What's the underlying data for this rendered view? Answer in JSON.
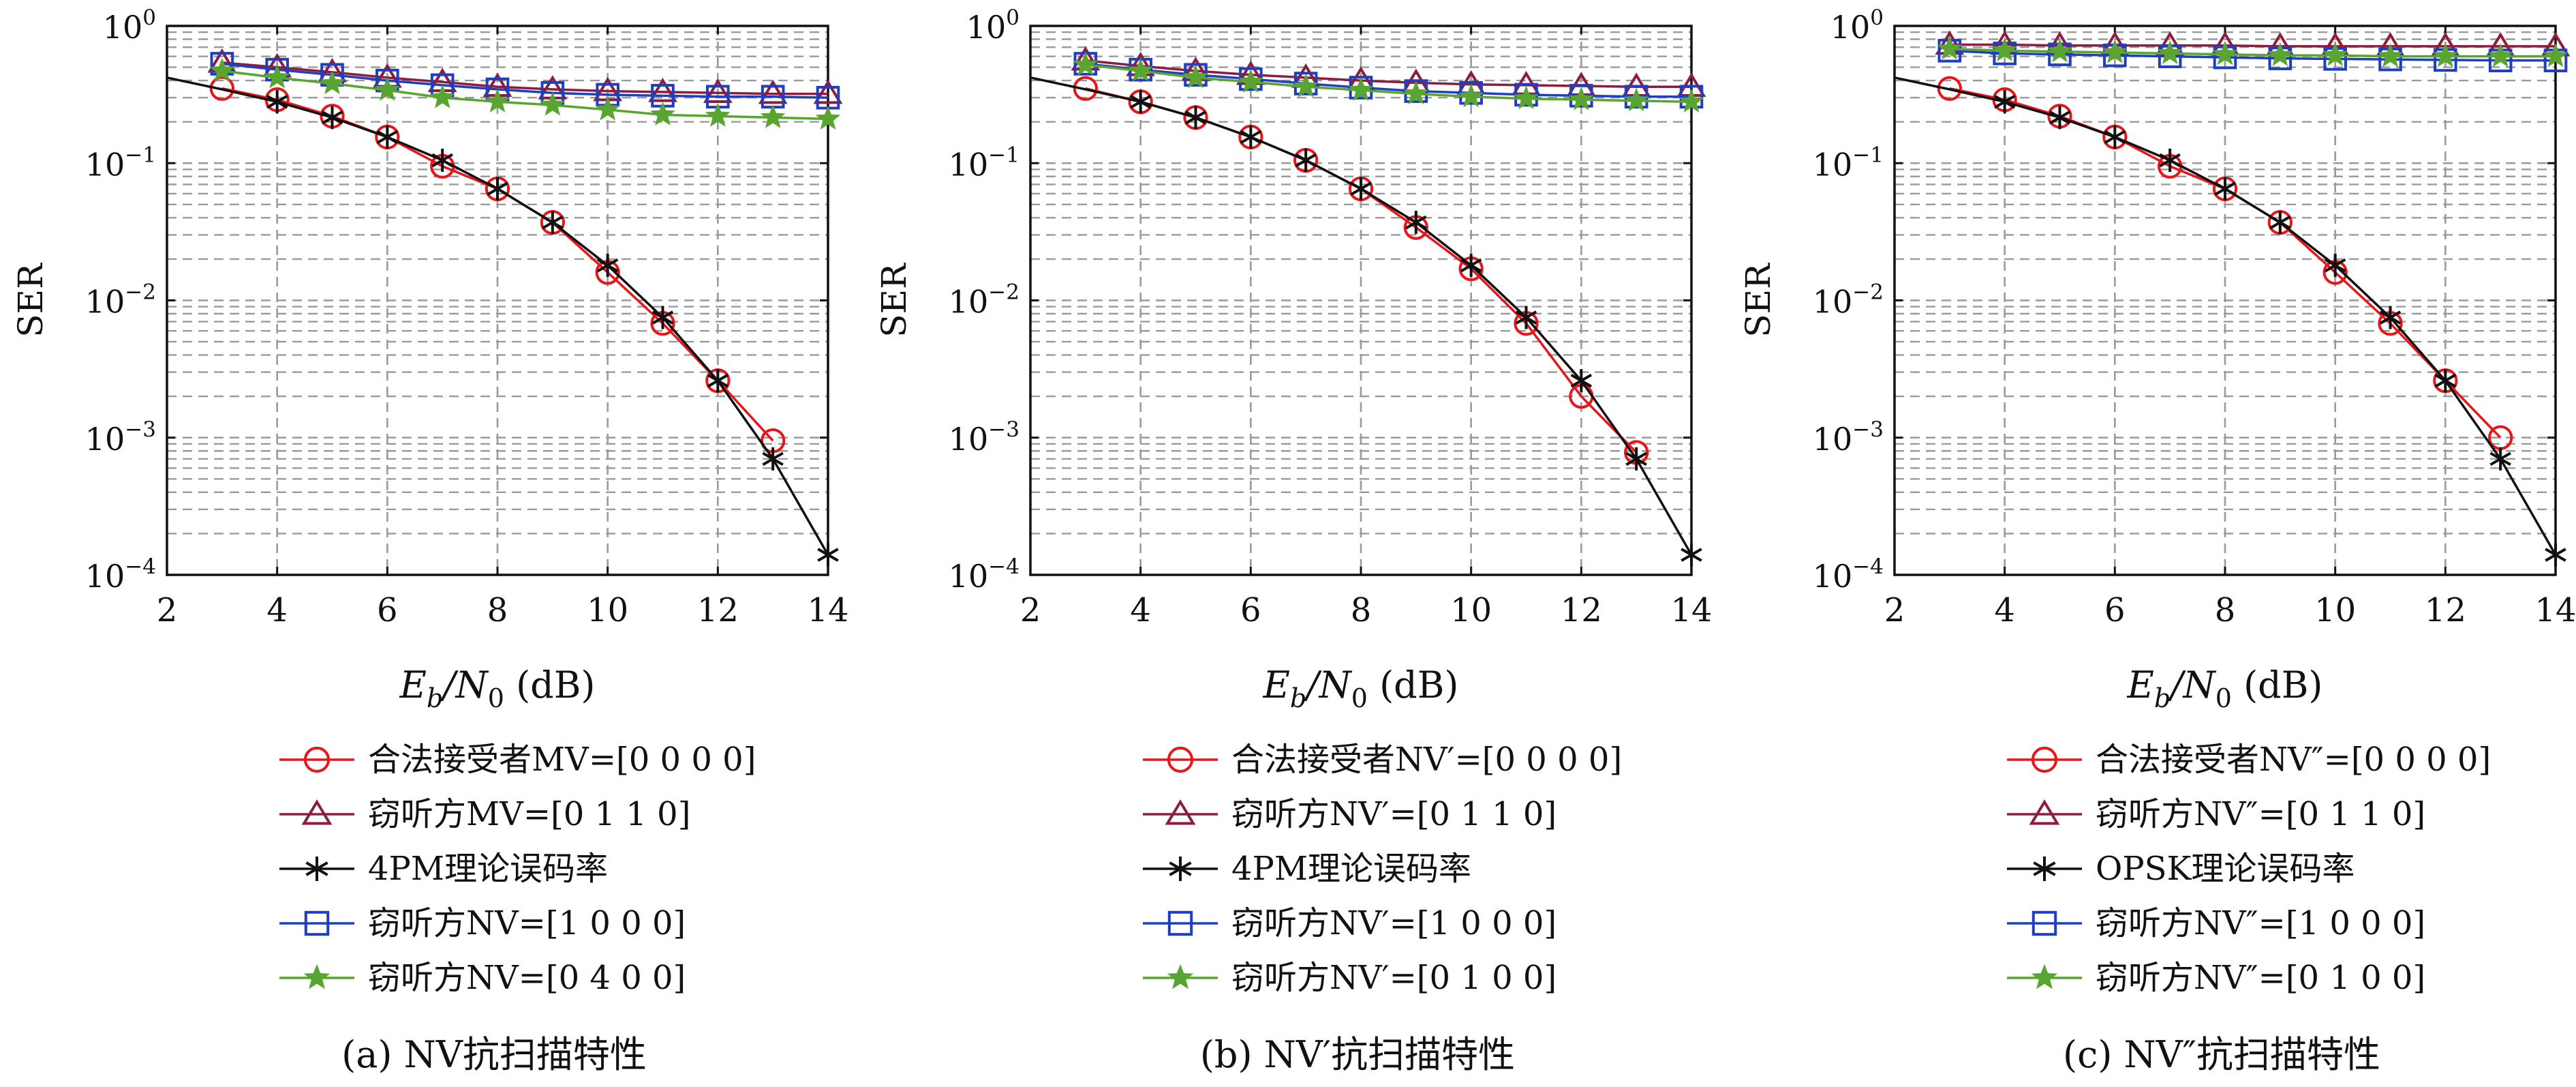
{
  "colors": {
    "legit": "#e8161b",
    "eve_a": "#8c1d3f",
    "theory": "#111111",
    "eve_b": "#1f3fbf",
    "eve_c": "#5aa531",
    "grid": "#9a9a9a"
  },
  "chart_data": [
    {
      "type": "line",
      "yscale": "log",
      "grid": true,
      "legend_placement": "below",
      "title": "(a) NV抗扫描特性",
      "xlabel": "E_b/N_0 (dB)",
      "ylabel": "SER",
      "xlim": [
        2,
        14
      ],
      "ylim": [
        0.0001,
        1
      ],
      "xticks": [
        2,
        4,
        6,
        8,
        10,
        12,
        14
      ],
      "yticks": [
        {
          "v": 1,
          "e": "0"
        },
        {
          "v": 0.1,
          "e": "-1"
        },
        {
          "v": 0.01,
          "e": "-2"
        },
        {
          "v": 0.001,
          "e": "-3"
        },
        {
          "v": 0.0001,
          "e": "-4"
        }
      ],
      "series": [
        {
          "name": "合法接受者MV=[0 0 0 0]",
          "marker": "circle",
          "color": "legit",
          "x": [
            3,
            4,
            5,
            6,
            7,
            8,
            9,
            10,
            11,
            12,
            13
          ],
          "y": [
            0.35,
            0.29,
            0.22,
            0.155,
            0.095,
            0.065,
            0.037,
            0.016,
            0.0068,
            0.0026,
            0.00095
          ]
        },
        {
          "name": "窃听方MV=[0 1 1 0]",
          "marker": "triangle",
          "color": "eve_a",
          "x": [
            3,
            4,
            5,
            6,
            7,
            8,
            9,
            10,
            11,
            12,
            13,
            14
          ],
          "y": [
            0.54,
            0.5,
            0.46,
            0.42,
            0.39,
            0.36,
            0.345,
            0.335,
            0.33,
            0.325,
            0.32,
            0.32
          ]
        },
        {
          "name": "4PM理论误码率",
          "marker": "asterisk",
          "color": "theory",
          "line_from": 2,
          "x": [
            2,
            3,
            4,
            5,
            6,
            7,
            8,
            9,
            10,
            11,
            12,
            13,
            14
          ],
          "y": [
            0.42,
            0.345,
            0.28,
            0.215,
            0.155,
            0.105,
            0.065,
            0.037,
            0.018,
            0.0075,
            0.0026,
            0.0007,
            0.00014
          ]
        },
        {
          "name": "窃听方NV=[1 0 0 0]",
          "marker": "square",
          "color": "eve_b",
          "x": [
            3,
            4,
            5,
            6,
            7,
            8,
            9,
            10,
            11,
            12,
            13,
            14
          ],
          "y": [
            0.53,
            0.48,
            0.44,
            0.4,
            0.37,
            0.345,
            0.325,
            0.315,
            0.31,
            0.305,
            0.305,
            0.3
          ]
        },
        {
          "name": "窃听方NV=[0 4 0 0]",
          "marker": "star",
          "color": "eve_c",
          "x": [
            3,
            4,
            5,
            6,
            7,
            8,
            9,
            10,
            11,
            12,
            13,
            14
          ],
          "y": [
            0.47,
            0.42,
            0.38,
            0.34,
            0.3,
            0.28,
            0.265,
            0.245,
            0.225,
            0.22,
            0.215,
            0.21
          ]
        }
      ]
    },
    {
      "type": "line",
      "yscale": "log",
      "grid": true,
      "legend_placement": "below",
      "title": "(b) NV′抗扫描特性",
      "xlabel": "E_b/N_0 (dB)",
      "ylabel": "SER",
      "xlim": [
        2,
        14
      ],
      "ylim": [
        0.0001,
        1
      ],
      "xticks": [
        2,
        4,
        6,
        8,
        10,
        12,
        14
      ],
      "yticks": [
        {
          "v": 1,
          "e": "0"
        },
        {
          "v": 0.1,
          "e": "-1"
        },
        {
          "v": 0.01,
          "e": "-2"
        },
        {
          "v": 0.001,
          "e": "-3"
        },
        {
          "v": 0.0001,
          "e": "-4"
        }
      ],
      "series": [
        {
          "name": "合法接受者NV′=[0 0 0 0]",
          "marker": "circle",
          "color": "legit",
          "x": [
            3,
            4,
            5,
            6,
            7,
            8,
            9,
            10,
            11,
            12,
            13
          ],
          "y": [
            0.35,
            0.28,
            0.215,
            0.155,
            0.105,
            0.065,
            0.034,
            0.017,
            0.0068,
            0.002,
            0.00078
          ]
        },
        {
          "name": "窃听方NV′=[0 1 1 0]",
          "marker": "triangle",
          "color": "eve_a",
          "x": [
            3,
            4,
            5,
            6,
            7,
            8,
            9,
            10,
            11,
            12,
            13,
            14
          ],
          "y": [
            0.56,
            0.51,
            0.47,
            0.44,
            0.42,
            0.4,
            0.385,
            0.375,
            0.37,
            0.365,
            0.36,
            0.36
          ]
        },
        {
          "name": "4PM理论误码率",
          "marker": "asterisk",
          "color": "theory",
          "line_from": 2,
          "x": [
            2,
            3,
            4,
            5,
            6,
            7,
            8,
            9,
            10,
            11,
            12,
            13,
            14
          ],
          "y": [
            0.42,
            0.345,
            0.28,
            0.215,
            0.155,
            0.105,
            0.065,
            0.037,
            0.018,
            0.0075,
            0.0026,
            0.0007,
            0.00014
          ]
        },
        {
          "name": "窃听方NV′=[1 0 0 0]",
          "marker": "square",
          "color": "eve_b",
          "x": [
            3,
            4,
            5,
            6,
            7,
            8,
            9,
            10,
            11,
            12,
            13,
            14
          ],
          "y": [
            0.53,
            0.48,
            0.44,
            0.41,
            0.38,
            0.355,
            0.335,
            0.325,
            0.315,
            0.31,
            0.305,
            0.305
          ]
        },
        {
          "name": "窃听方NV′=[0 1 0 0]",
          "marker": "star",
          "color": "eve_c",
          "x": [
            3,
            4,
            5,
            6,
            7,
            8,
            9,
            10,
            11,
            12,
            13,
            14
          ],
          "y": [
            0.52,
            0.47,
            0.42,
            0.39,
            0.36,
            0.34,
            0.32,
            0.305,
            0.295,
            0.29,
            0.285,
            0.28
          ]
        }
      ]
    },
    {
      "type": "line",
      "yscale": "log",
      "grid": true,
      "legend_placement": "below",
      "title": "(c) NV″抗扫描特性",
      "xlabel": "E_b/N_0 (dB)",
      "ylabel": "SER",
      "xlim": [
        2,
        14
      ],
      "ylim": [
        0.0001,
        1
      ],
      "xticks": [
        2,
        4,
        6,
        8,
        10,
        12,
        14
      ],
      "yticks": [
        {
          "v": 1,
          "e": "0"
        },
        {
          "v": 0.1,
          "e": "-1"
        },
        {
          "v": 0.01,
          "e": "-2"
        },
        {
          "v": 0.001,
          "e": "-3"
        },
        {
          "v": 0.0001,
          "e": "-4"
        }
      ],
      "series": [
        {
          "name": "合法接受者NV″=[0 0 0 0]",
          "marker": "circle",
          "color": "legit",
          "x": [
            3,
            4,
            5,
            6,
            7,
            8,
            9,
            10,
            11,
            12,
            13
          ],
          "y": [
            0.35,
            0.29,
            0.22,
            0.155,
            0.095,
            0.065,
            0.037,
            0.016,
            0.0068,
            0.0026,
            0.001
          ]
        },
        {
          "name": "窃听方NV″=[0 1 1 0]",
          "marker": "triangle",
          "color": "eve_a",
          "x": [
            3,
            4,
            5,
            6,
            7,
            8,
            9,
            10,
            11,
            12,
            13,
            14
          ],
          "y": [
            0.73,
            0.73,
            0.72,
            0.72,
            0.72,
            0.72,
            0.71,
            0.71,
            0.71,
            0.71,
            0.71,
            0.71
          ]
        },
        {
          "name": "OPSK理论误码率",
          "marker": "asterisk",
          "color": "theory",
          "line_from": 2,
          "x": [
            2,
            3,
            4,
            5,
            6,
            7,
            8,
            9,
            10,
            11,
            12,
            13,
            14
          ],
          "y": [
            0.42,
            0.345,
            0.28,
            0.215,
            0.155,
            0.105,
            0.065,
            0.037,
            0.018,
            0.0075,
            0.0026,
            0.0007,
            0.00014
          ]
        },
        {
          "name": "窃听方NV″=[1 0 0 0]",
          "marker": "square",
          "color": "eve_b",
          "x": [
            3,
            4,
            5,
            6,
            7,
            8,
            9,
            10,
            11,
            12,
            13,
            14
          ],
          "y": [
            0.66,
            0.63,
            0.62,
            0.61,
            0.6,
            0.59,
            0.58,
            0.575,
            0.57,
            0.565,
            0.56,
            0.56
          ]
        },
        {
          "name": "窃听方NV″=[0 1 0 0]",
          "marker": "star",
          "color": "eve_c",
          "x": [
            3,
            4,
            5,
            6,
            7,
            8,
            9,
            10,
            11,
            12,
            13,
            14
          ],
          "y": [
            0.68,
            0.66,
            0.65,
            0.64,
            0.63,
            0.62,
            0.61,
            0.61,
            0.6,
            0.6,
            0.6,
            0.6
          ]
        }
      ]
    }
  ]
}
